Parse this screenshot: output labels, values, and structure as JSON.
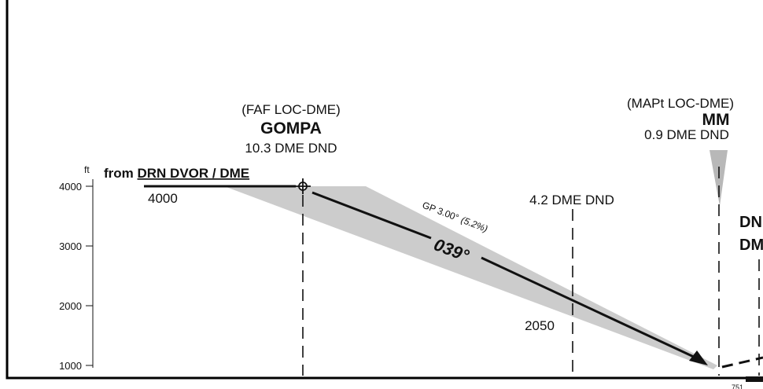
{
  "faf": {
    "type_label": "(FAF LOC-DME)",
    "name": "GOMPA",
    "distance": "10.3 DME DND"
  },
  "mapt": {
    "type_label": "(MAPt LOC-DME)",
    "name": "MM",
    "distance": "0.9 DME DND"
  },
  "intermediate_fix": {
    "distance": "4.2 DME DND"
  },
  "partial_label": {
    "line1": "DN",
    "line2": "DM"
  },
  "altitude_axis": {
    "unit": "ft",
    "ticks": [
      "4000",
      "3000",
      "2000",
      "1000"
    ]
  },
  "from_label": {
    "prefix": "from ",
    "facility": "DRN DVOR / DME"
  },
  "initial_altitude": "4000",
  "glidepath": {
    "gp_label": "GP 3.00°",
    "gradient": "(5.2%)",
    "course": "039°"
  },
  "altitude_at_fix": "2050",
  "small_bottom_label": "751",
  "colors": {
    "line": "#111111",
    "protection_area": "#cccccc",
    "frame": "#000000"
  }
}
